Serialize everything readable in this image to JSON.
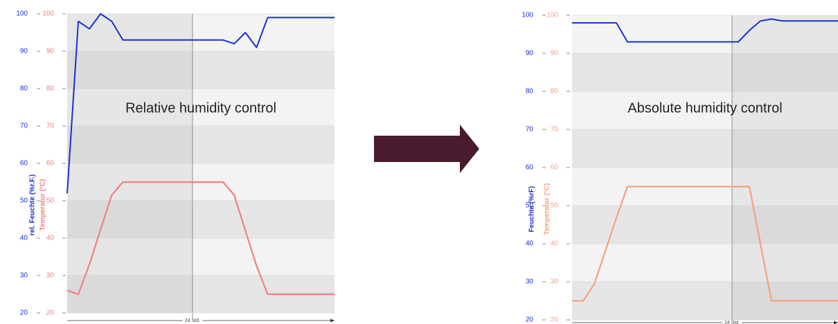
{
  "chart_data": [
    {
      "type": "line",
      "annotation": "Relative humidity control",
      "xlabel": "24 Std.",
      "categories": [
        null,
        null,
        null,
        null,
        null,
        null,
        null,
        null,
        null,
        null,
        null,
        null,
        null,
        null,
        null,
        null,
        null,
        null,
        null,
        null,
        null,
        null,
        null,
        null,
        null
      ],
      "series": [
        {
          "name": "rel. Feuchte (%r.F.)",
          "color": "#1a2fd0",
          "values": [
            52,
            98,
            96,
            100,
            98,
            93,
            93,
            93,
            93,
            93,
            93,
            93,
            93,
            93,
            93,
            92,
            95,
            91,
            99,
            99,
            99,
            99,
            99,
            99,
            99
          ]
        },
        {
          "name": "Temperatur (°C)",
          "color": "#f08080",
          "axis": "y2",
          "values": [
            26,
            25,
            33,
            42.3,
            51.5,
            55,
            55,
            55,
            55,
            55,
            55,
            55,
            55,
            55,
            55,
            51.5,
            42,
            32.6,
            25,
            25,
            25,
            25,
            25,
            25,
            25
          ]
        }
      ],
      "ylim": [
        20,
        100
      ],
      "yticks": [
        20,
        30,
        40,
        50,
        60,
        70,
        80,
        90,
        100
      ],
      "y2lim": [
        20,
        100
      ],
      "y2ticks": [
        20,
        30,
        40,
        50,
        60,
        70,
        80,
        90,
        100
      ]
    },
    {
      "type": "line",
      "annotation": "Absolute humidity control",
      "xlabel": "24 Std.",
      "categories": [
        null,
        null,
        null,
        null,
        null,
        null,
        null,
        null,
        null,
        null,
        null,
        null,
        null,
        null,
        null,
        null,
        null,
        null,
        null,
        null,
        null,
        null,
        null,
        null,
        null
      ],
      "series": [
        {
          "name": "Feuchte (%rF)",
          "color": "#1a2fd0",
          "values": [
            98,
            98,
            98,
            98,
            98,
            93,
            93,
            93,
            93,
            93,
            93,
            93,
            93,
            93,
            93,
            93,
            96,
            98.5,
            99,
            98.5,
            98.5,
            98.5,
            98.5,
            98.5,
            98.5
          ]
        },
        {
          "name": "Temperatur (°C)",
          "color": "#f4a080",
          "axis": "y2",
          "values": [
            25,
            25,
            29.4,
            38,
            46.8,
            55,
            55,
            55,
            55,
            55,
            55,
            55,
            55,
            55,
            55,
            55,
            55,
            40,
            25,
            25,
            25,
            25,
            25,
            25,
            25
          ]
        }
      ],
      "ylim": [
        20,
        100
      ],
      "yticks": [
        20,
        30,
        40,
        50,
        60,
        70,
        80,
        90,
        100
      ],
      "y2lim": [
        20,
        100
      ],
      "y2ticks": [
        20,
        30,
        40,
        50,
        60,
        70,
        80,
        90,
        100
      ]
    }
  ]
}
